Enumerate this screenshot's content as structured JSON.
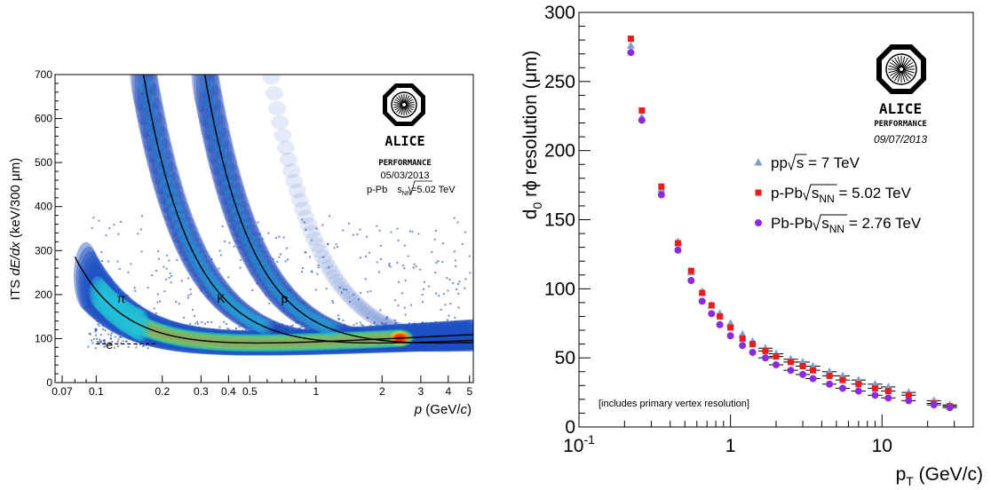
{
  "chart_data": [
    {
      "type": "heatmap",
      "title": "",
      "xlabel_italic": "p",
      "xlabel_rest": " (GeV/",
      "xlabel_c": "c",
      "xlabel_end": ")",
      "ylabel_pre": "ITS ",
      "ylabel_italic": "dE/dx",
      "ylabel_post": " (keV/300 μm)",
      "x_scale": "log",
      "xlim": [
        0.065,
        5.2
      ],
      "ylim": [
        0,
        700
      ],
      "x_ticks": [
        {
          "v": 0.07,
          "label": "0.07"
        },
        {
          "v": 0.1,
          "label": "0.1"
        },
        {
          "v": 0.2,
          "label": "0.2"
        },
        {
          "v": 0.3,
          "label": "0.3"
        },
        {
          "v": 0.4,
          "label": "0.4"
        },
        {
          "v": 0.5,
          "label": "0.5"
        },
        {
          "v": 1,
          "label": "1"
        },
        {
          "v": 2,
          "label": "2"
        },
        {
          "v": 3,
          "label": "3"
        },
        {
          "v": 4,
          "label": "4"
        },
        {
          "v": 5,
          "label": "5"
        }
      ],
      "y_ticks": [
        0,
        100,
        200,
        300,
        400,
        500,
        600,
        700
      ],
      "y_tick_labels": [
        "0",
        "100",
        "200",
        "300",
        "400",
        "500",
        "600",
        "700"
      ],
      "species_labels": [
        {
          "label": "π",
          "p": 0.13,
          "dedx": 210
        },
        {
          "label": "K",
          "p": 0.37,
          "dedx": 210
        },
        {
          "label": "p",
          "p": 0.72,
          "dedx": 210
        },
        {
          "label": "e",
          "p": 0.115,
          "dedx": 105
        }
      ],
      "bands": [
        {
          "name": "π",
          "mass": 0.1396
        },
        {
          "name": "K",
          "mass": 0.4937
        },
        {
          "name": "p",
          "mass": 0.9383
        }
      ],
      "electron_line": {
        "dedx": 88,
        "p_from": 0.1,
        "p_to": 0.19
      },
      "logo": {
        "name": "ALICE",
        "sub": "PERFORMANCE",
        "date": "05/03/2013"
      },
      "collision": {
        "pre": "p-Pb ",
        "sqrt": "s",
        "sub": "NN",
        "post": "=5.02 TeV"
      }
    },
    {
      "type": "scatter",
      "title": "",
      "xlabel_pre": "p",
      "xlabel_sub": "T",
      "xlabel_post": " (GeV/c)",
      "ylabel_pre": "d",
      "ylabel_sub": "0",
      "ylabel_post": " rϕ resolution (μm)",
      "x_scale": "log",
      "xlim": [
        0.1,
        40
      ],
      "ylim": [
        0,
        300
      ],
      "x_ticks": [
        {
          "v": 0.1,
          "label": "10",
          "sup": "-1"
        },
        {
          "v": 1,
          "label": "1"
        },
        {
          "v": 10,
          "label": "10"
        }
      ],
      "y_ticks": [
        0,
        50,
        100,
        150,
        200,
        250,
        300
      ],
      "y_tick_labels": [
        "0",
        "50",
        "100",
        "150",
        "200",
        "250",
        "300"
      ],
      "note": "[includes primary vertex resolution]",
      "logo": {
        "name": "ALICE",
        "sub": "PERFORMANCE",
        "date": "09/07/2013"
      },
      "series": [
        {
          "name_pre": "pp",
          "name_sqrt": "s",
          "name_sub": "",
          "name_post": " = 7 TeV",
          "marker": "triangle",
          "color": "#7f9fd0",
          "x": [
            0.22,
            0.26,
            0.35,
            0.45,
            0.55,
            0.65,
            0.75,
            0.85,
            1.0,
            1.2,
            1.4,
            1.7,
            2.0,
            2.5,
            3.0,
            3.5,
            4.5,
            5.5,
            7.0,
            9.0,
            11.0,
            15.0,
            22.0,
            28.0
          ],
          "y": [
            276,
            224,
            172,
            134,
            112,
            98,
            88,
            82,
            75,
            67,
            62,
            57,
            53,
            49,
            47,
            44,
            40,
            37,
            34,
            31,
            29,
            25,
            19,
            16
          ]
        },
        {
          "name_pre": "p-Pb",
          "name_sqrt": "s",
          "name_sub": "NN",
          "name_post": " = 5.02 TeV",
          "marker": "square",
          "color": "#ee1c1c",
          "x": [
            0.22,
            0.26,
            0.35,
            0.45,
            0.55,
            0.65,
            0.75,
            0.85,
            1.0,
            1.2,
            1.4,
            1.7,
            2.0,
            2.5,
            3.0,
            3.5,
            4.5,
            5.5,
            7.0,
            9.0,
            11.0,
            15.0,
            22.0,
            28.0
          ],
          "y": [
            281,
            229,
            174,
            133,
            113,
            97,
            88,
            80,
            72,
            64,
            60,
            55,
            51,
            47,
            44,
            41,
            37,
            34,
            31,
            28,
            26,
            23,
            17,
            15
          ]
        },
        {
          "name_pre": "Pb-Pb",
          "name_sqrt": "s",
          "name_sub": "NN",
          "name_post": " = 2.76 TeV",
          "marker": "circle",
          "color": "#8a2be2",
          "x": [
            0.22,
            0.26,
            0.35,
            0.45,
            0.55,
            0.65,
            0.75,
            0.85,
            1.0,
            1.2,
            1.4,
            1.7,
            2.0,
            2.5,
            3.0,
            3.5,
            4.5,
            5.5,
            7.0,
            9.0,
            11.0,
            15.0,
            22.0,
            28.0
          ],
          "y": [
            271,
            222,
            168,
            128,
            106,
            91,
            82,
            74,
            66,
            59,
            54,
            50,
            45,
            41,
            38,
            35,
            31,
            28,
            26,
            23,
            21,
            19,
            16,
            14
          ]
        }
      ]
    }
  ]
}
